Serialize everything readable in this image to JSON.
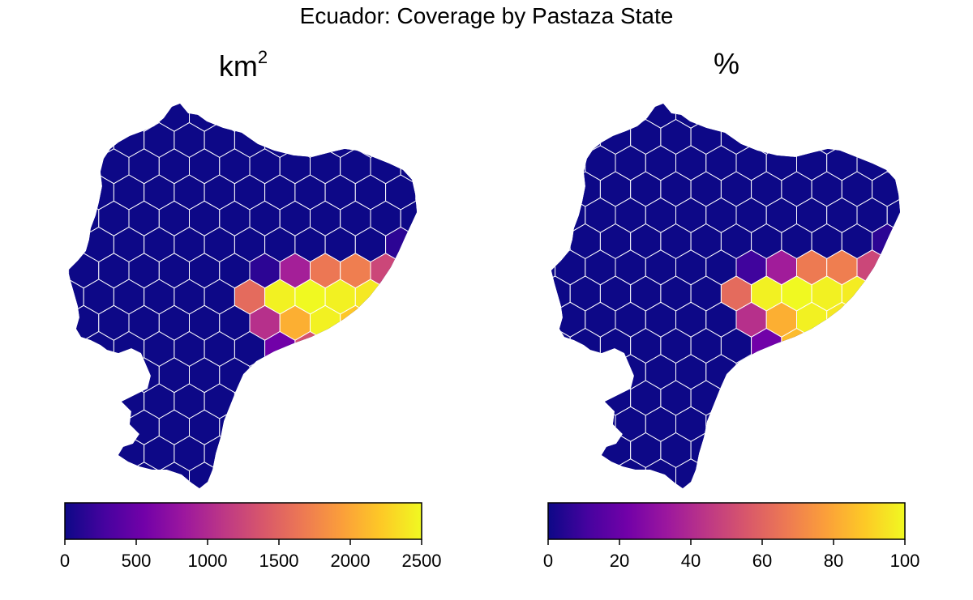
{
  "title": "Ecuador: Coverage by Pastaza State",
  "panels": [
    {
      "title_base": "km",
      "title_sup": "2",
      "legend": {
        "min": 0,
        "max": 2500,
        "ticks": [
          "0",
          "500",
          "1000",
          "1500",
          "2000",
          "2500"
        ],
        "tick_values": [
          0,
          500,
          1000,
          1500,
          2000,
          2500
        ]
      },
      "cells": [
        {
          "row": 0,
          "col": 5,
          "value": 150
        },
        {
          "row": 1,
          "col": 0,
          "value": 150
        },
        {
          "row": 1,
          "col": 1,
          "value": 900
        },
        {
          "row": 1,
          "col": 2,
          "value": 1650
        },
        {
          "row": 1,
          "col": 3,
          "value": 1700
        },
        {
          "row": 1,
          "col": 4,
          "value": 1250
        },
        {
          "row": 1,
          "col": 5,
          "value": 950
        },
        {
          "row": 2,
          "col": 0,
          "value": 1550
        },
        {
          "row": 2,
          "col": 1,
          "value": 2450
        },
        {
          "row": 2,
          "col": 2,
          "value": 2500
        },
        {
          "row": 2,
          "col": 3,
          "value": 2450
        },
        {
          "row": 2,
          "col": 4,
          "value": 2400
        },
        {
          "row": 2,
          "col": 5,
          "value": 500
        },
        {
          "row": 3,
          "col": 0,
          "value": 1050
        },
        {
          "row": 3,
          "col": 1,
          "value": 2050
        },
        {
          "row": 3,
          "col": 2,
          "value": 2450
        },
        {
          "row": 3,
          "col": 3,
          "value": 2200
        },
        {
          "row": 4,
          "col": 1,
          "value": 550
        },
        {
          "row": 4,
          "col": 2,
          "value": 1350
        }
      ]
    },
    {
      "title_base": "%",
      "title_sup": "",
      "legend": {
        "min": 0,
        "max": 100,
        "ticks": [
          "0",
          "20",
          "40",
          "60",
          "80",
          "100"
        ],
        "tick_values": [
          0,
          20,
          40,
          60,
          80,
          100
        ]
      },
      "cells": [
        {
          "row": 0,
          "col": 5,
          "value": 6
        },
        {
          "row": 1,
          "col": 0,
          "value": 10
        },
        {
          "row": 1,
          "col": 1,
          "value": 35
        },
        {
          "row": 1,
          "col": 2,
          "value": 67
        },
        {
          "row": 1,
          "col": 3,
          "value": 68
        },
        {
          "row": 1,
          "col": 4,
          "value": 50
        },
        {
          "row": 1,
          "col": 5,
          "value": 40
        },
        {
          "row": 2,
          "col": 0,
          "value": 62
        },
        {
          "row": 2,
          "col": 1,
          "value": 98
        },
        {
          "row": 2,
          "col": 2,
          "value": 100
        },
        {
          "row": 2,
          "col": 3,
          "value": 98
        },
        {
          "row": 2,
          "col": 4,
          "value": 97
        },
        {
          "row": 2,
          "col": 5,
          "value": 92
        },
        {
          "row": 3,
          "col": 0,
          "value": 42
        },
        {
          "row": 3,
          "col": 1,
          "value": 82
        },
        {
          "row": 3,
          "col": 2,
          "value": 98
        },
        {
          "row": 3,
          "col": 3,
          "value": 96
        },
        {
          "row": 4,
          "col": 1,
          "value": 22
        },
        {
          "row": 4,
          "col": 2,
          "value": 85
        }
      ]
    }
  ],
  "colors": {
    "base_fill": "#0d0887",
    "hex_stroke": "#ffffff",
    "palette": [
      "#0d0887",
      "#46039f",
      "#7201a8",
      "#9c179e",
      "#bd3786",
      "#d8576b",
      "#ed7953",
      "#fb9f3a",
      "#fdca26",
      "#f0f921"
    ]
  }
}
